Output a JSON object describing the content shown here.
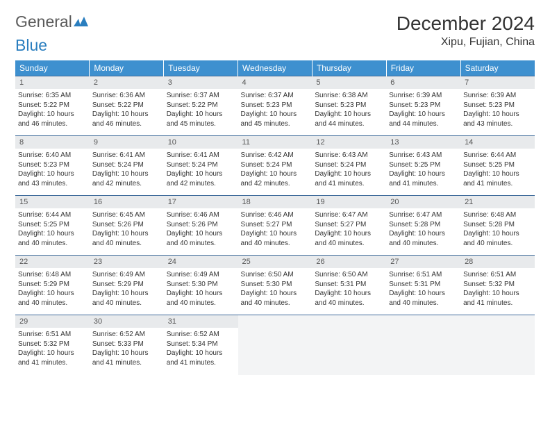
{
  "logo": {
    "part1": "General",
    "part2": "Blue"
  },
  "title": "December 2024",
  "location": "Xipu, Fujian, China",
  "colors": {
    "header_bg": "#3e90cf",
    "header_text": "#ffffff",
    "daynum_bg": "#e8eaec",
    "border": "#3e6a9a",
    "logo_gray": "#5a5a5a",
    "logo_blue": "#2a7ebf"
  },
  "weekdays": [
    "Sunday",
    "Monday",
    "Tuesday",
    "Wednesday",
    "Thursday",
    "Friday",
    "Saturday"
  ],
  "days": [
    {
      "n": "1",
      "sr": "6:35 AM",
      "ss": "5:22 PM",
      "dl": "10 hours and 46 minutes."
    },
    {
      "n": "2",
      "sr": "6:36 AM",
      "ss": "5:22 PM",
      "dl": "10 hours and 46 minutes."
    },
    {
      "n": "3",
      "sr": "6:37 AM",
      "ss": "5:22 PM",
      "dl": "10 hours and 45 minutes."
    },
    {
      "n": "4",
      "sr": "6:37 AM",
      "ss": "5:23 PM",
      "dl": "10 hours and 45 minutes."
    },
    {
      "n": "5",
      "sr": "6:38 AM",
      "ss": "5:23 PM",
      "dl": "10 hours and 44 minutes."
    },
    {
      "n": "6",
      "sr": "6:39 AM",
      "ss": "5:23 PM",
      "dl": "10 hours and 44 minutes."
    },
    {
      "n": "7",
      "sr": "6:39 AM",
      "ss": "5:23 PM",
      "dl": "10 hours and 43 minutes."
    },
    {
      "n": "8",
      "sr": "6:40 AM",
      "ss": "5:23 PM",
      "dl": "10 hours and 43 minutes."
    },
    {
      "n": "9",
      "sr": "6:41 AM",
      "ss": "5:24 PM",
      "dl": "10 hours and 42 minutes."
    },
    {
      "n": "10",
      "sr": "6:41 AM",
      "ss": "5:24 PM",
      "dl": "10 hours and 42 minutes."
    },
    {
      "n": "11",
      "sr": "6:42 AM",
      "ss": "5:24 PM",
      "dl": "10 hours and 42 minutes."
    },
    {
      "n": "12",
      "sr": "6:43 AM",
      "ss": "5:24 PM",
      "dl": "10 hours and 41 minutes."
    },
    {
      "n": "13",
      "sr": "6:43 AM",
      "ss": "5:25 PM",
      "dl": "10 hours and 41 minutes."
    },
    {
      "n": "14",
      "sr": "6:44 AM",
      "ss": "5:25 PM",
      "dl": "10 hours and 41 minutes."
    },
    {
      "n": "15",
      "sr": "6:44 AM",
      "ss": "5:25 PM",
      "dl": "10 hours and 40 minutes."
    },
    {
      "n": "16",
      "sr": "6:45 AM",
      "ss": "5:26 PM",
      "dl": "10 hours and 40 minutes."
    },
    {
      "n": "17",
      "sr": "6:46 AM",
      "ss": "5:26 PM",
      "dl": "10 hours and 40 minutes."
    },
    {
      "n": "18",
      "sr": "6:46 AM",
      "ss": "5:27 PM",
      "dl": "10 hours and 40 minutes."
    },
    {
      "n": "19",
      "sr": "6:47 AM",
      "ss": "5:27 PM",
      "dl": "10 hours and 40 minutes."
    },
    {
      "n": "20",
      "sr": "6:47 AM",
      "ss": "5:28 PM",
      "dl": "10 hours and 40 minutes."
    },
    {
      "n": "21",
      "sr": "6:48 AM",
      "ss": "5:28 PM",
      "dl": "10 hours and 40 minutes."
    },
    {
      "n": "22",
      "sr": "6:48 AM",
      "ss": "5:29 PM",
      "dl": "10 hours and 40 minutes."
    },
    {
      "n": "23",
      "sr": "6:49 AM",
      "ss": "5:29 PM",
      "dl": "10 hours and 40 minutes."
    },
    {
      "n": "24",
      "sr": "6:49 AM",
      "ss": "5:30 PM",
      "dl": "10 hours and 40 minutes."
    },
    {
      "n": "25",
      "sr": "6:50 AM",
      "ss": "5:30 PM",
      "dl": "10 hours and 40 minutes."
    },
    {
      "n": "26",
      "sr": "6:50 AM",
      "ss": "5:31 PM",
      "dl": "10 hours and 40 minutes."
    },
    {
      "n": "27",
      "sr": "6:51 AM",
      "ss": "5:31 PM",
      "dl": "10 hours and 40 minutes."
    },
    {
      "n": "28",
      "sr": "6:51 AM",
      "ss": "5:32 PM",
      "dl": "10 hours and 41 minutes."
    },
    {
      "n": "29",
      "sr": "6:51 AM",
      "ss": "5:32 PM",
      "dl": "10 hours and 41 minutes."
    },
    {
      "n": "30",
      "sr": "6:52 AM",
      "ss": "5:33 PM",
      "dl": "10 hours and 41 minutes."
    },
    {
      "n": "31",
      "sr": "6:52 AM",
      "ss": "5:34 PM",
      "dl": "10 hours and 41 minutes."
    }
  ],
  "labels": {
    "sunrise": "Sunrise: ",
    "sunset": "Sunset: ",
    "daylight": "Daylight: "
  }
}
